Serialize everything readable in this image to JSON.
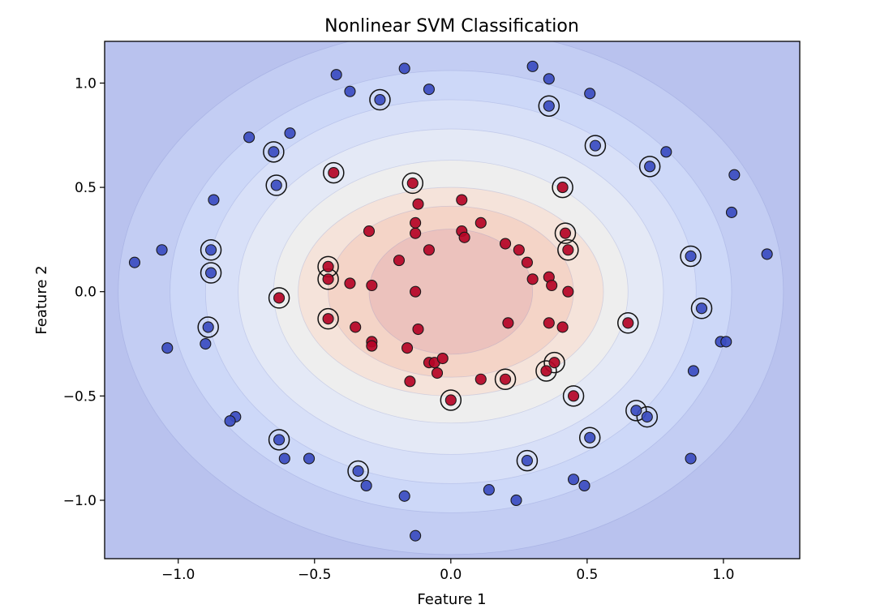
{
  "chart_data": {
    "type": "scatter",
    "title": "Nonlinear SVM Classification",
    "xlabel": "Feature 1",
    "ylabel": "Feature 2",
    "xlim": [
      -1.27,
      1.28
    ],
    "ylim": [
      -1.28,
      1.2
    ],
    "grid": false,
    "x_ticks": [
      {
        "value": -1.0,
        "label": "−1.0"
      },
      {
        "value": -0.5,
        "label": "−0.5"
      },
      {
        "value": 0.0,
        "label": "0.0"
      },
      {
        "value": 0.5,
        "label": "0.5"
      },
      {
        "value": 1.0,
        "label": "1.0"
      }
    ],
    "y_ticks": [
      {
        "value": -1.0,
        "label": "−1.0"
      },
      {
        "value": -0.5,
        "label": "−0.5"
      },
      {
        "value": 0.0,
        "label": "0.0"
      },
      {
        "value": 0.5,
        "label": "0.5"
      },
      {
        "value": 1.0,
        "label": "1.0"
      }
    ],
    "decision_contours": {
      "center": [
        0.0,
        0.0
      ],
      "levels": [
        {
          "rx": 1.22,
          "ry": 1.26,
          "color": "#c3cdf3"
        },
        {
          "rx": 1.03,
          "ry": 1.06,
          "color": "#cdd8f8"
        },
        {
          "rx": 0.9,
          "ry": 0.92,
          "color": "#d8e0f8"
        },
        {
          "rx": 0.78,
          "ry": 0.78,
          "color": "#e4e9f6"
        },
        {
          "rx": 0.65,
          "ry": 0.63,
          "color": "#eeeeee"
        },
        {
          "rx": 0.56,
          "ry": 0.5,
          "color": "#f5e3da"
        },
        {
          "rx": 0.45,
          "ry": 0.41,
          "color": "#f4d4c7"
        },
        {
          "rx": 0.3,
          "ry": 0.3,
          "color": "#ecc2bd"
        }
      ],
      "background_color": "#b9c2ee"
    },
    "class_colors": {
      "class_0": "#3b4cc0",
      "class_1": "#b40426"
    },
    "series": [
      {
        "name": "class_0",
        "points": [
          [
            -1.16,
            0.14
          ],
          [
            -1.06,
            0.2
          ],
          [
            -1.04,
            -0.27
          ],
          [
            -0.9,
            -0.25
          ],
          [
            -0.89,
            -0.17
          ],
          [
            -0.88,
            0.2
          ],
          [
            -0.88,
            0.09
          ],
          [
            -0.87,
            0.44
          ],
          [
            -0.79,
            -0.6
          ],
          [
            -0.81,
            -0.62
          ],
          [
            -0.74,
            0.74
          ],
          [
            -0.65,
            0.67
          ],
          [
            -0.64,
            0.51
          ],
          [
            -0.63,
            -0.71
          ],
          [
            -0.61,
            -0.8
          ],
          [
            -0.59,
            0.76
          ],
          [
            -0.52,
            -0.8
          ],
          [
            -0.42,
            1.04
          ],
          [
            -0.37,
            0.96
          ],
          [
            -0.34,
            -0.86
          ],
          [
            -0.31,
            -0.93
          ],
          [
            -0.26,
            0.92
          ],
          [
            -0.17,
            1.07
          ],
          [
            -0.17,
            -0.98
          ],
          [
            -0.13,
            -1.17
          ],
          [
            -0.08,
            0.97
          ],
          [
            0.14,
            -0.95
          ],
          [
            0.24,
            -1.0
          ],
          [
            0.28,
            -0.81
          ],
          [
            0.3,
            1.08
          ],
          [
            0.36,
            1.02
          ],
          [
            0.36,
            0.89
          ],
          [
            0.45,
            -0.9
          ],
          [
            0.49,
            -0.93
          ],
          [
            0.51,
            0.95
          ],
          [
            0.51,
            -0.7
          ],
          [
            0.53,
            0.7
          ],
          [
            0.68,
            -0.57
          ],
          [
            0.72,
            -0.6
          ],
          [
            0.73,
            0.6
          ],
          [
            0.79,
            0.67
          ],
          [
            0.88,
            0.17
          ],
          [
            0.88,
            -0.8
          ],
          [
            0.89,
            -0.38
          ],
          [
            0.92,
            -0.08
          ],
          [
            0.99,
            -0.24
          ],
          [
            1.01,
            -0.24
          ],
          [
            1.03,
            0.38
          ],
          [
            1.04,
            0.56
          ],
          [
            1.16,
            0.18
          ]
        ]
      },
      {
        "name": "class_1",
        "points": [
          [
            -0.63,
            -0.03
          ],
          [
            -0.45,
            0.12
          ],
          [
            -0.45,
            0.06
          ],
          [
            -0.45,
            -0.13
          ],
          [
            -0.43,
            0.57
          ],
          [
            -0.37,
            0.04
          ],
          [
            -0.35,
            -0.17
          ],
          [
            -0.3,
            0.29
          ],
          [
            -0.29,
            0.03
          ],
          [
            -0.29,
            -0.24
          ],
          [
            -0.29,
            -0.26
          ],
          [
            -0.19,
            0.15
          ],
          [
            -0.16,
            -0.27
          ],
          [
            -0.15,
            -0.43
          ],
          [
            -0.14,
            0.52
          ],
          [
            -0.13,
            0.28
          ],
          [
            -0.13,
            0.33
          ],
          [
            -0.12,
            0.42
          ],
          [
            -0.13,
            0.0
          ],
          [
            -0.12,
            -0.18
          ],
          [
            -0.08,
            0.2
          ],
          [
            -0.08,
            -0.34
          ],
          [
            -0.06,
            -0.34
          ],
          [
            -0.05,
            -0.39
          ],
          [
            -0.03,
            -0.32
          ],
          [
            0.0,
            -0.52
          ],
          [
            0.04,
            0.44
          ],
          [
            0.04,
            0.29
          ],
          [
            0.05,
            0.26
          ],
          [
            0.11,
            0.33
          ],
          [
            0.11,
            -0.42
          ],
          [
            0.2,
            0.23
          ],
          [
            0.2,
            -0.42
          ],
          [
            0.21,
            -0.15
          ],
          [
            0.25,
            0.2
          ],
          [
            0.28,
            0.14
          ],
          [
            0.3,
            0.06
          ],
          [
            0.35,
            -0.38
          ],
          [
            0.36,
            0.07
          ],
          [
            0.36,
            -0.15
          ],
          [
            0.37,
            0.03
          ],
          [
            0.38,
            -0.34
          ],
          [
            0.41,
            0.5
          ],
          [
            0.41,
            -0.17
          ],
          [
            0.42,
            0.28
          ],
          [
            0.43,
            0.2
          ],
          [
            0.43,
            0.0
          ],
          [
            0.45,
            -0.5
          ],
          [
            0.65,
            -0.15
          ]
        ]
      }
    ],
    "support_vectors": [
      [
        -0.89,
        -0.17
      ],
      [
        -0.88,
        0.2
      ],
      [
        -0.88,
        0.09
      ],
      [
        -0.65,
        0.67
      ],
      [
        -0.64,
        0.51
      ],
      [
        -0.63,
        -0.71
      ],
      [
        -0.34,
        -0.86
      ],
      [
        -0.26,
        0.92
      ],
      [
        0.28,
        -0.81
      ],
      [
        0.36,
        0.89
      ],
      [
        0.51,
        -0.7
      ],
      [
        0.53,
        0.7
      ],
      [
        0.68,
        -0.57
      ],
      [
        0.72,
        -0.6
      ],
      [
        0.73,
        0.6
      ],
      [
        0.88,
        0.17
      ],
      [
        0.92,
        -0.08
      ],
      [
        -0.63,
        -0.03
      ],
      [
        -0.45,
        0.12
      ],
      [
        -0.45,
        0.06
      ],
      [
        -0.45,
        -0.13
      ],
      [
        -0.43,
        0.57
      ],
      [
        -0.14,
        0.52
      ],
      [
        0.0,
        -0.52
      ],
      [
        0.2,
        -0.42
      ],
      [
        0.35,
        -0.38
      ],
      [
        0.38,
        -0.34
      ],
      [
        0.41,
        0.5
      ],
      [
        0.42,
        0.28
      ],
      [
        0.43,
        0.2
      ],
      [
        0.45,
        -0.5
      ],
      [
        0.65,
        -0.15
      ]
    ]
  }
}
